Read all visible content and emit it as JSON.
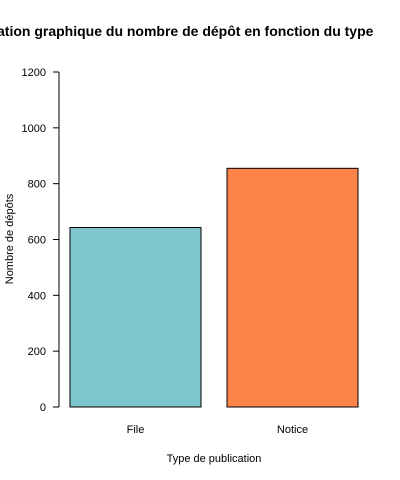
{
  "chart_data": {
    "type": "bar",
    "title": "ation graphique du nombre de dépôt en fonction du type",
    "xlabel": "Type de publication",
    "ylabel": "Nombre de dépôts",
    "categories": [
      "File",
      "Notice"
    ],
    "values": [
      643,
      855
    ],
    "colors": [
      "#7EC6CE",
      "#FF8449"
    ],
    "ylim": [
      0,
      1200
    ],
    "yticks": [
      0,
      200,
      400,
      600,
      800,
      1000,
      1200
    ],
    "grid": false,
    "legend": "none"
  }
}
